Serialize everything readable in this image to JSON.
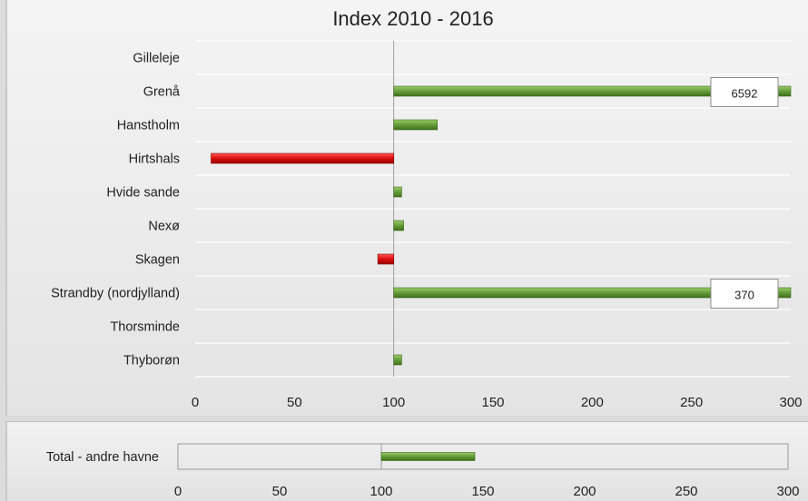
{
  "chart_data": [
    {
      "type": "bar",
      "orientation": "horizontal",
      "title": "Index 2010 - 2016",
      "baseline": 100,
      "xlim": [
        0,
        300
      ],
      "xticks": [
        0,
        50,
        100,
        150,
        200,
        250,
        300
      ],
      "grid": true,
      "categories": [
        "Gilleleje",
        "Grenå",
        "Hanstholm",
        "Hirtshals",
        "Hvide sande",
        "Nexø",
        "Skagen",
        "Strandby (nordjylland)",
        "Thorsminde",
        "Thyborøn"
      ],
      "values": [
        100,
        6592,
        122,
        8,
        104,
        105,
        92,
        370,
        100,
        104
      ],
      "data_labels": [
        null,
        "6592",
        null,
        null,
        null,
        null,
        null,
        "370",
        null,
        null
      ],
      "colors": {
        "positive": "#6aa13c",
        "negative": "#e01010"
      }
    },
    {
      "type": "bar",
      "orientation": "horizontal",
      "baseline": 100,
      "xlim": [
        0,
        300
      ],
      "xticks": [
        0,
        50,
        100,
        150,
        200,
        250,
        300
      ],
      "categories": [
        "Total - andre havne"
      ],
      "values": [
        146
      ],
      "colors": {
        "positive": "#6aa13c",
        "negative": "#e01010"
      }
    }
  ]
}
